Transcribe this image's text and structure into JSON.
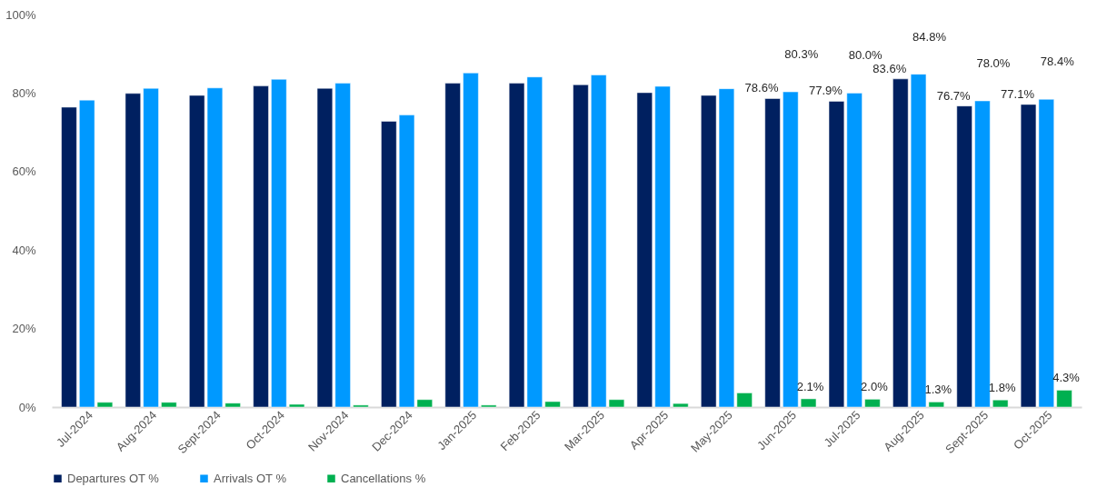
{
  "chart_data": {
    "type": "bar",
    "categories": [
      "Jul-2024",
      "Aug-2024",
      "Sept-2024",
      "Oct-2024",
      "Nov-2024",
      "Dec-2024",
      "Jan-2025",
      "Feb-2025",
      "Mar-2025",
      "Apr-2025",
      "May-2025",
      "Jun-2025",
      "Jul-2025",
      "Aug-2025",
      "Sept-2025",
      "Oct-2025"
    ],
    "series": [
      {
        "name": "Departures OT %",
        "color": "#002060",
        "values": [
          76.4,
          79.9,
          79.4,
          81.8,
          81.2,
          72.8,
          82.5,
          82.5,
          82.1,
          80.1,
          79.4,
          78.6,
          77.9,
          83.6,
          76.7,
          77.1
        ],
        "value_labels": [
          null,
          null,
          null,
          null,
          null,
          null,
          null,
          null,
          null,
          null,
          null,
          "78.6%",
          "77.9%",
          "83.6%",
          "76.7%",
          "77.1%"
        ]
      },
      {
        "name": "Arrivals OT %",
        "color": "#0099ff",
        "values": [
          78.2,
          81.2,
          81.3,
          83.5,
          82.5,
          74.4,
          85.1,
          84.1,
          84.6,
          81.7,
          81.1,
          80.3,
          80.0,
          84.8,
          78.0,
          78.4
        ],
        "value_labels": [
          null,
          null,
          null,
          null,
          null,
          null,
          null,
          null,
          null,
          null,
          null,
          "80.3%",
          "80.0%",
          "84.8%",
          "78.0%",
          "78.4%"
        ]
      },
      {
        "name": "Cancellations %",
        "color": "#00b050",
        "values": [
          1.2,
          1.2,
          1.0,
          0.7,
          0.5,
          1.9,
          0.5,
          1.4,
          1.9,
          0.9,
          3.6,
          2.1,
          2.0,
          1.3,
          1.8,
          4.3
        ],
        "value_labels": [
          null,
          null,
          null,
          null,
          null,
          null,
          null,
          null,
          null,
          null,
          null,
          "2.1%",
          "2.0%",
          "1.3%",
          "1.8%",
          "4.3%"
        ]
      }
    ],
    "ylim": [
      0,
      100
    ],
    "yticks": [
      {
        "value": 0,
        "label": "0%"
      },
      {
        "value": 20,
        "label": "20%"
      },
      {
        "value": 40,
        "label": "40%"
      },
      {
        "value": 60,
        "label": "60%"
      },
      {
        "value": 80,
        "label": "80%"
      },
      {
        "value": 100,
        "label": "100%"
      }
    ],
    "grid": false,
    "legend": "bottom"
  }
}
